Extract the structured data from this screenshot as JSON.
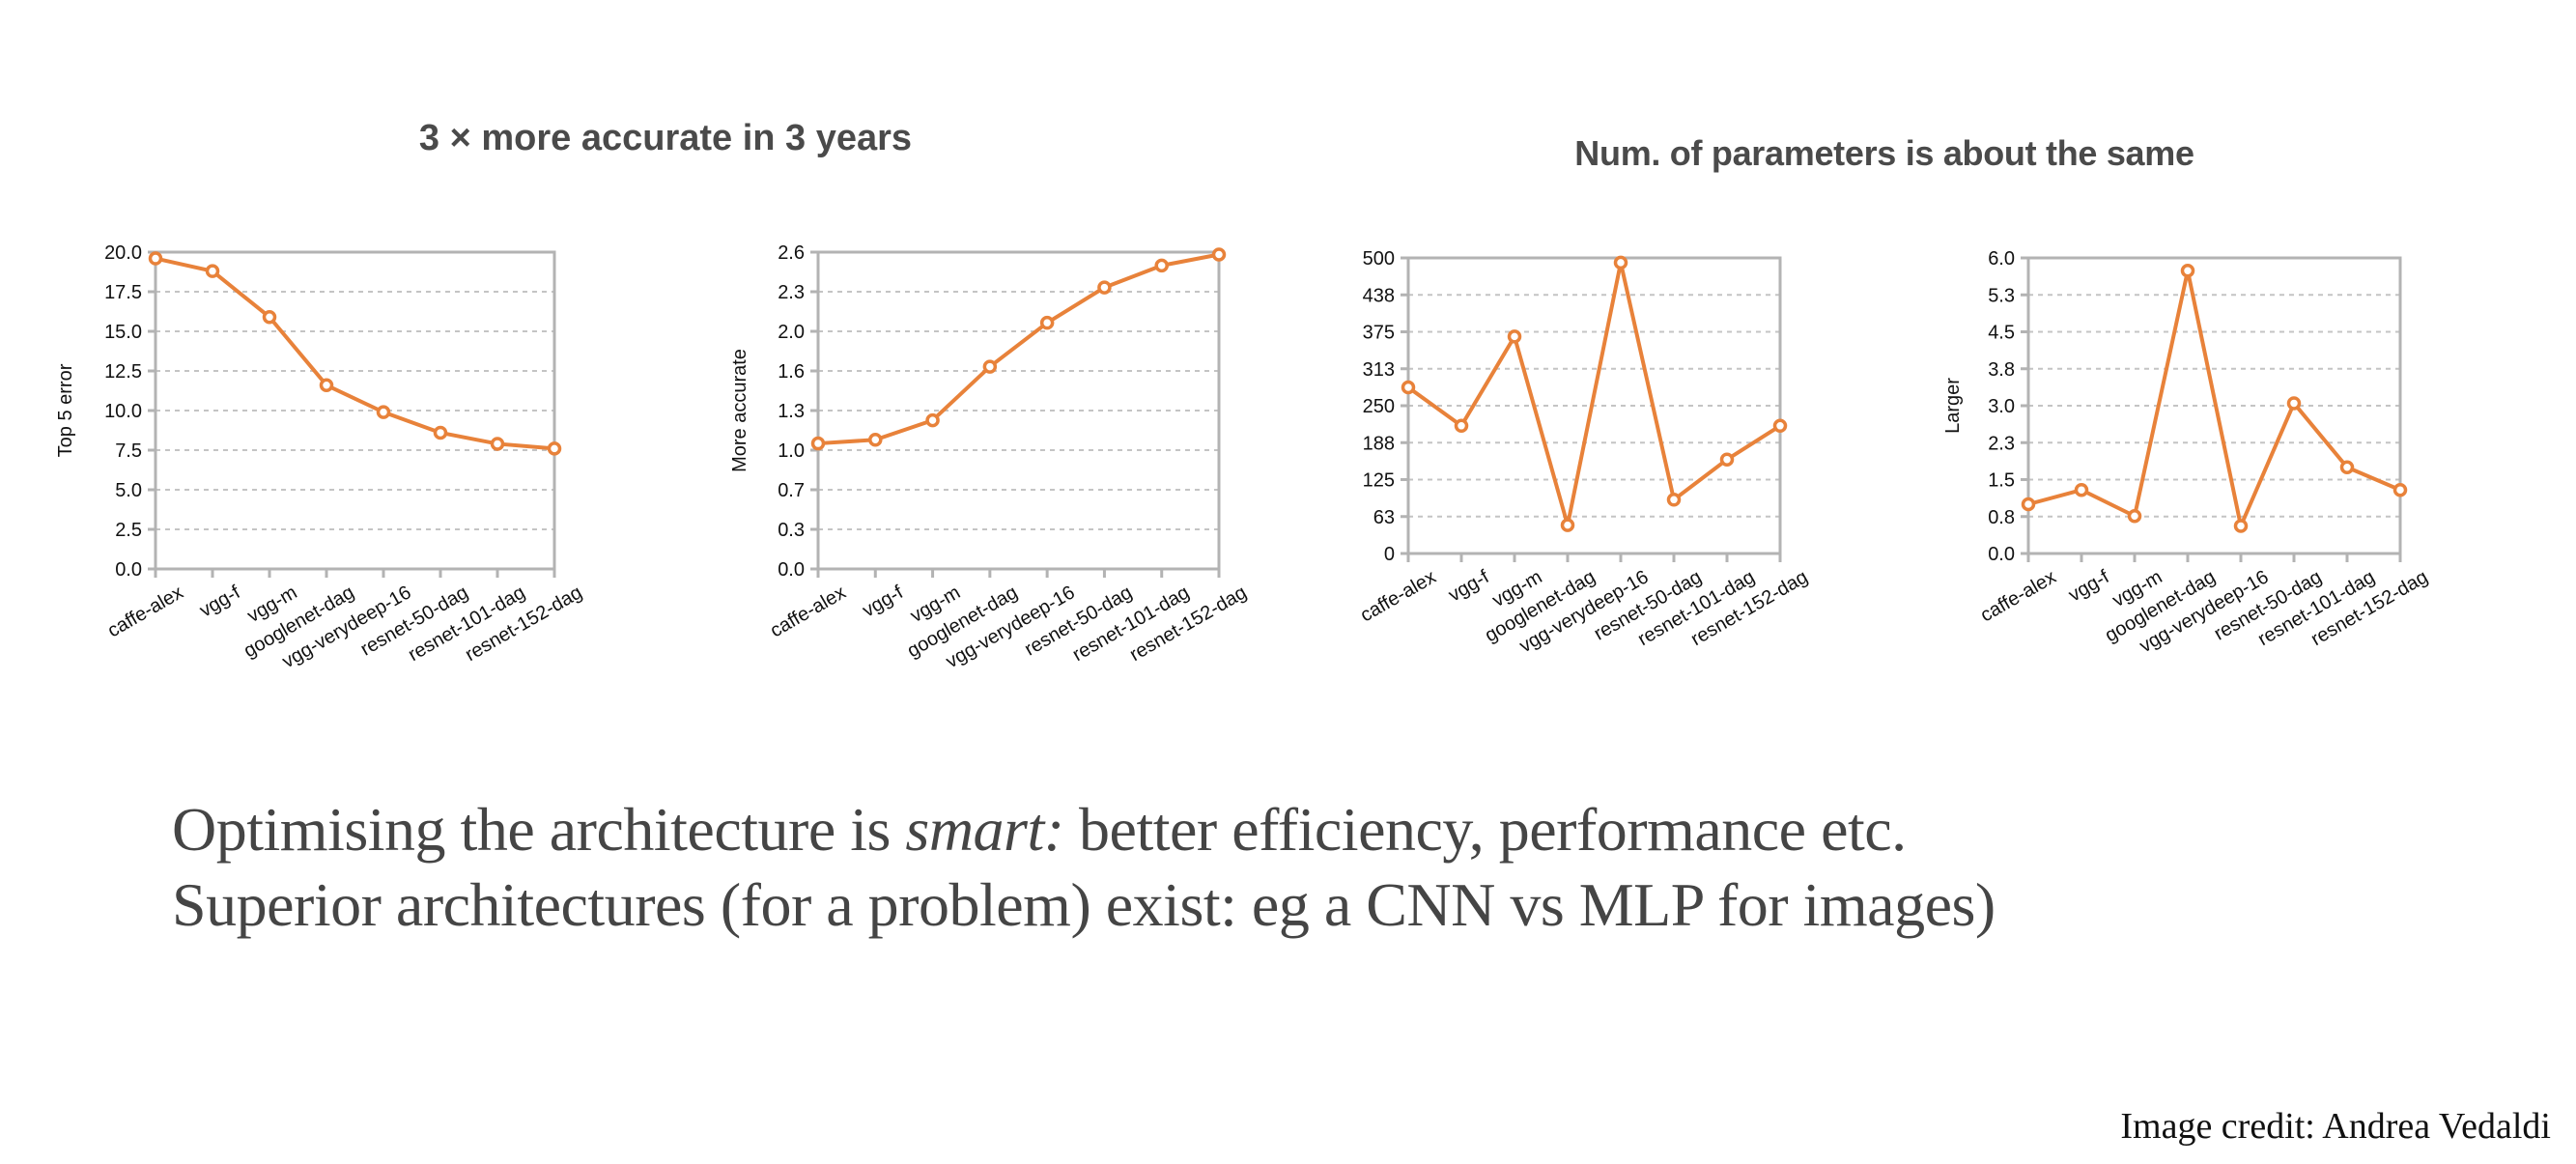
{
  "slide": {
    "title_left": "3 × more accurate in 3 years",
    "title_right": "Num. of parameters is about the same",
    "caption_line1_before": "Optimising the architecture is ",
    "caption_line1_italic": "smart:",
    "caption_line1_after": " better efficiency, performance etc.",
    "caption_line2": "Superior architectures (for a problem) exist: eg a CNN vs MLP for images)",
    "credit": "Image credit: Andrea Vedaldi"
  },
  "colors": {
    "series": "#E8823A",
    "axis": "#B3B3B3",
    "grid": "#C4C4C4",
    "tick_text": "#111111",
    "title_text": "#4A4A4A"
  },
  "chart_data": [
    {
      "type": "line",
      "title": "",
      "xlabel": "",
      "ylabel": "Top 5 error",
      "categories": [
        "caffe-alex",
        "vgg-f",
        "vgg-m",
        "googlenet-dag",
        "vgg-verydeep-16",
        "resnet-50-dag",
        "resnet-101-dag",
        "resnet-152-dag"
      ],
      "values": [
        19.6,
        18.8,
        15.9,
        11.6,
        9.9,
        8.6,
        7.9,
        7.6
      ],
      "ylim": [
        0,
        20
      ],
      "yticks": [
        "0.0",
        "2.5",
        "5.0",
        "7.5",
        "10.0",
        "12.5",
        "15.0",
        "17.5",
        "20.0"
      ],
      "grid": true,
      "legend": "none"
    },
    {
      "type": "line",
      "title": "",
      "xlabel": "",
      "ylabel": "More accurate",
      "categories": [
        "caffe-alex",
        "vgg-f",
        "vgg-m",
        "googlenet-dag",
        "vgg-verydeep-16",
        "resnet-50-dag",
        "resnet-101-dag",
        "resnet-152-dag"
      ],
      "values": [
        1.03,
        1.06,
        1.22,
        1.66,
        2.02,
        2.31,
        2.49,
        2.58
      ],
      "ylim": [
        0,
        2.6
      ],
      "yticks": [
        "0.0",
        "0.3",
        "0.7",
        "1.0",
        "1.3",
        "1.6",
        "2.0",
        "2.3",
        "2.6"
      ],
      "grid": true,
      "legend": "none"
    },
    {
      "type": "line",
      "title": "",
      "xlabel": "",
      "ylabel": "",
      "categories": [
        "caffe-alex",
        "vgg-f",
        "vgg-m",
        "googlenet-dag",
        "vgg-verydeep-16",
        "resnet-50-dag",
        "resnet-101-dag",
        "resnet-152-dag"
      ],
      "values": [
        281,
        216,
        367,
        48,
        492,
        91,
        159,
        216
      ],
      "ylim": [
        0,
        500
      ],
      "yticks": [
        "0",
        "63",
        "125",
        "188",
        "250",
        "313",
        "375",
        "438",
        "500"
      ],
      "grid": true,
      "legend": "none"
    },
    {
      "type": "line",
      "title": "",
      "xlabel": "",
      "ylabel": "Larger",
      "categories": [
        "caffe-alex",
        "vgg-f",
        "vgg-m",
        "googlenet-dag",
        "vgg-verydeep-16",
        "resnet-50-dag",
        "resnet-101-dag",
        "resnet-152-dag"
      ],
      "values": [
        1.0,
        1.29,
        0.76,
        5.74,
        0.56,
        3.05,
        1.75,
        1.29
      ],
      "ylim": [
        0,
        6
      ],
      "yticks": [
        "0.0",
        "0.8",
        "1.5",
        "2.3",
        "3.0",
        "3.8",
        "4.5",
        "5.3",
        "6.0"
      ],
      "grid": true,
      "legend": "none"
    }
  ]
}
